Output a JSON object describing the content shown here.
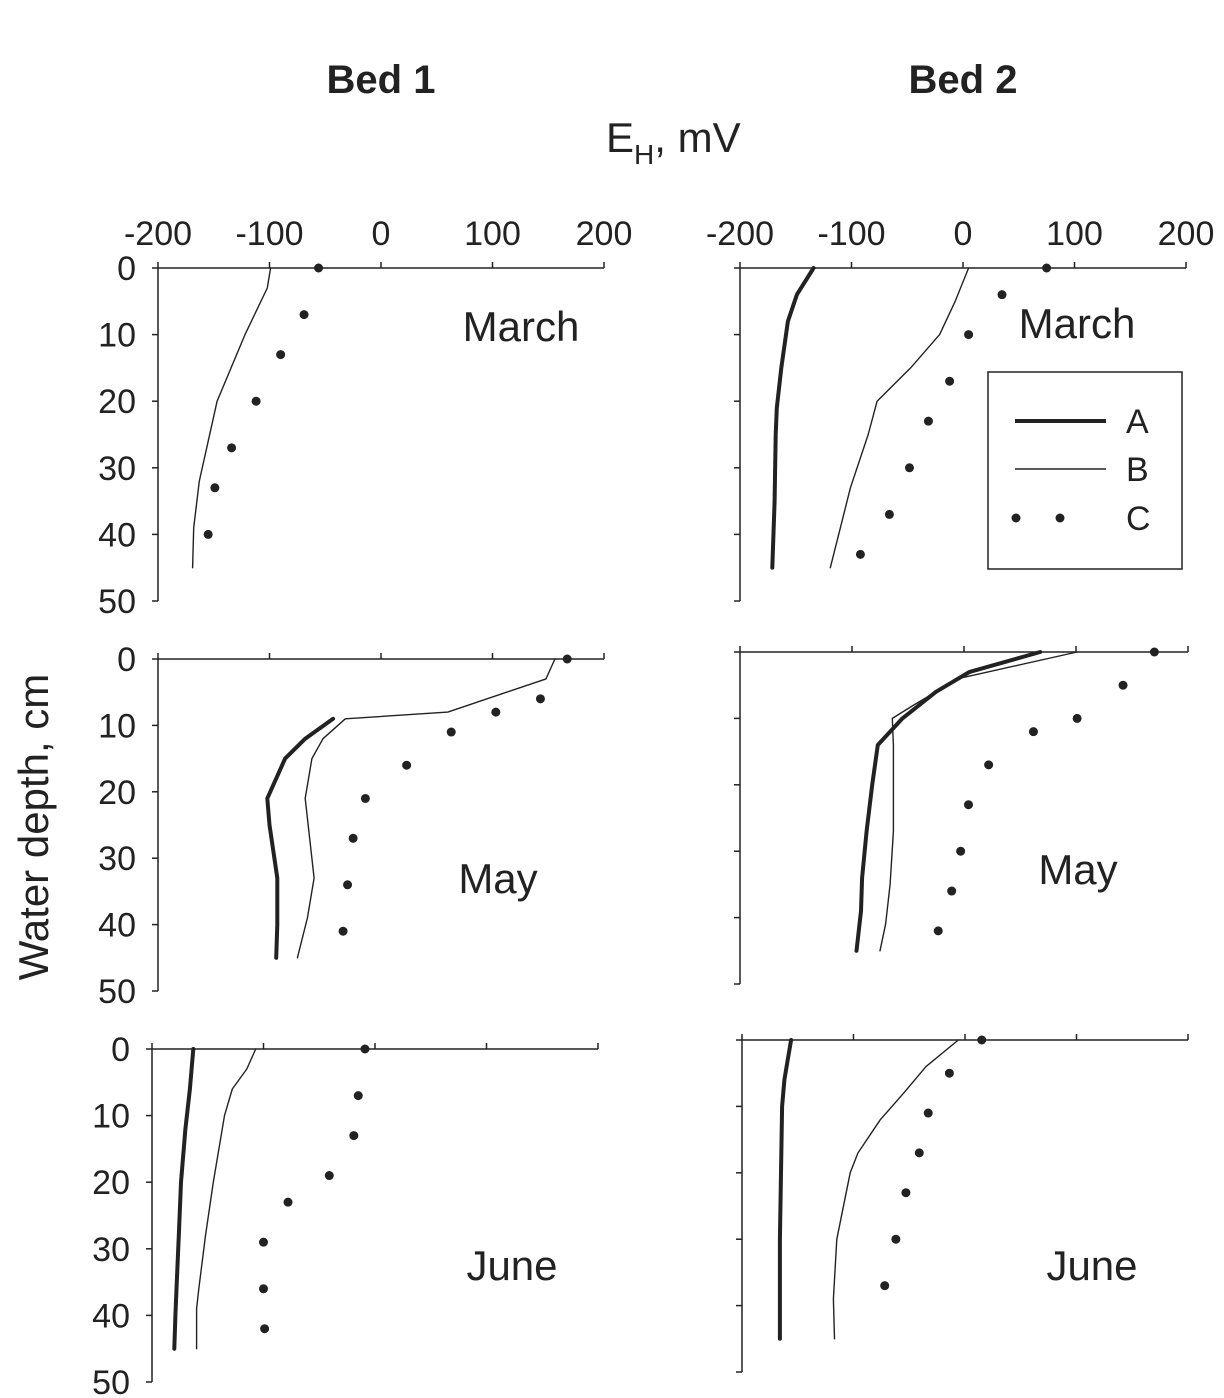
{
  "titles": {
    "bed1": "Bed 1",
    "bed2": "Bed 2"
  },
  "x_axis": {
    "label_main": "E",
    "label_sub": "H",
    "label_rest": ", mV"
  },
  "y_axis": {
    "label": "Water depth, cm"
  },
  "legend": {
    "A": "A",
    "B": "B",
    "C": "C"
  },
  "chart_data": {
    "type": "line",
    "title": "",
    "xlabel": "EH, mV",
    "ylabel": "Water depth, cm",
    "xlim": [
      -200,
      200
    ],
    "ylim": [
      50,
      0
    ],
    "x_ticks": [
      "-200",
      "-100",
      "0",
      "100",
      "200"
    ],
    "y_ticks": [
      "0",
      "10",
      "20",
      "30",
      "40",
      "50"
    ],
    "series_styles": {
      "A": "thick line",
      "B": "thin line",
      "C": "dots"
    },
    "legend_position": "right, Bed 2 March panel",
    "panels": [
      {
        "bed": "Bed 1",
        "month": "March",
        "series": [
          {
            "name": "B",
            "points": [
              [
                -99,
                0
              ],
              [
                -102,
                3
              ],
              [
                -122,
                10
              ],
              [
                -147,
                20
              ],
              [
                -163,
                32
              ],
              [
                -168,
                39
              ],
              [
                -169,
                45
              ]
            ]
          },
          {
            "name": "C",
            "points": [
              [
                -56,
                0
              ],
              [
                -69,
                7
              ],
              [
                -90,
                13
              ],
              [
                -112,
                20
              ],
              [
                -134,
                27
              ],
              [
                -149,
                33
              ],
              [
                -155,
                40
              ]
            ]
          }
        ]
      },
      {
        "bed": "Bed 1",
        "month": "May",
        "series": [
          {
            "name": "A",
            "points": [
              [
                -43,
                9
              ],
              [
                -68,
                12
              ],
              [
                -86,
                15
              ],
              [
                -102,
                21
              ],
              [
                -100,
                25
              ],
              [
                -93,
                33
              ],
              [
                -93,
                40
              ],
              [
                -94,
                45
              ]
            ]
          },
          {
            "name": "B",
            "points": [
              [
                156,
                0
              ],
              [
                148,
                3
              ],
              [
                60,
                8
              ],
              [
                -32,
                9
              ],
              [
                -52,
                12
              ],
              [
                -62,
                15
              ],
              [
                -68,
                21
              ],
              [
                -60,
                33
              ],
              [
                -66,
                39
              ],
              [
                -75,
                45
              ]
            ]
          },
          {
            "name": "C",
            "points": [
              [
                167,
                0
              ],
              [
                143,
                6
              ],
              [
                103,
                8
              ],
              [
                63,
                11
              ],
              [
                23,
                16
              ],
              [
                -14,
                21
              ],
              [
                -25,
                27
              ],
              [
                -30,
                34
              ],
              [
                -34,
                41
              ]
            ]
          }
        ]
      },
      {
        "bed": "Bed 1",
        "month": "June",
        "series": [
          {
            "name": "A",
            "points": [
              [
                -163,
                0
              ],
              [
                -166,
                6
              ],
              [
                -170,
                12
              ],
              [
                -174,
                20
              ],
              [
                -176,
                28
              ],
              [
                -178,
                36
              ],
              [
                -179,
                40
              ],
              [
                -180,
                45
              ]
            ]
          },
          {
            "name": "B",
            "points": [
              [
                -107,
                0
              ],
              [
                -115,
                3
              ],
              [
                -128,
                6
              ],
              [
                -135,
                10
              ],
              [
                -145,
                20
              ],
              [
                -152,
                28
              ],
              [
                -158,
                36
              ],
              [
                -160,
                39
              ],
              [
                -160,
                45
              ]
            ]
          },
          {
            "name": "C",
            "points": [
              [
                -9,
                0
              ],
              [
                -15,
                7
              ],
              [
                -19,
                13
              ],
              [
                -41,
                19
              ],
              [
                -78,
                23
              ],
              [
                -100,
                29
              ],
              [
                -100,
                36
              ],
              [
                -99,
                42
              ]
            ]
          }
        ]
      },
      {
        "bed": "Bed 2",
        "month": "March",
        "series": [
          {
            "name": "A",
            "points": [
              [
                -134,
                0
              ],
              [
                -149,
                4
              ],
              [
                -157,
                8
              ],
              [
                -163,
                15
              ],
              [
                -167,
                21
              ],
              [
                -168,
                25
              ],
              [
                -169,
                35
              ],
              [
                -171,
                45
              ]
            ]
          },
          {
            "name": "B",
            "points": [
              [
                5,
                0
              ],
              [
                -7,
                5
              ],
              [
                -21,
                10
              ],
              [
                -47,
                15
              ],
              [
                -77,
                20
              ],
              [
                -85,
                25
              ],
              [
                -101,
                33
              ],
              [
                -110,
                39
              ],
              [
                -119,
                45
              ]
            ]
          },
          {
            "name": "C",
            "points": [
              [
                75,
                0
              ],
              [
                35,
                4
              ],
              [
                5,
                10
              ],
              [
                -12,
                17
              ],
              [
                -31,
                23
              ],
              [
                -48,
                30
              ],
              [
                -66,
                37
              ],
              [
                -92,
                43
              ]
            ]
          }
        ]
      },
      {
        "bed": "Bed 2",
        "month": "May",
        "series": [
          {
            "name": "A",
            "points": [
              [
                68,
                0
              ],
              [
                5,
                3
              ],
              [
                -25,
                6
              ],
              [
                -55,
                10
              ],
              [
                -77,
                14
              ],
              [
                -82,
                20
              ],
              [
                -87,
                27
              ],
              [
                -91,
                34
              ],
              [
                -92,
                39
              ],
              [
                -96,
                45
              ]
            ]
          },
          {
            "name": "B",
            "points": [
              [
                101,
                0
              ],
              [
                -5,
                4
              ],
              [
                -45,
                8
              ],
              [
                -64,
                10
              ],
              [
                -63,
                14
              ],
              [
                -63,
                27
              ],
              [
                -66,
                35
              ],
              [
                -70,
                41
              ],
              [
                -75,
                45
              ]
            ]
          },
          {
            "name": "C",
            "points": [
              [
                170,
                0
              ],
              [
                142,
                5
              ],
              [
                101,
                10
              ],
              [
                62,
                12
              ],
              [
                22,
                17
              ],
              [
                4,
                23
              ],
              [
                -3,
                30
              ],
              [
                -11,
                36
              ],
              [
                -23,
                42
              ]
            ]
          }
        ]
      },
      {
        "bed": "Bed 2",
        "month": "June",
        "series": [
          {
            "name": "A",
            "points": [
              [
                -156,
                0
              ],
              [
                -159,
                3
              ],
              [
                -162,
                6
              ],
              [
                -164,
                10
              ],
              [
                -165,
                20
              ],
              [
                -166,
                30
              ],
              [
                -166,
                37
              ],
              [
                -166,
                45
              ]
            ]
          },
          {
            "name": "B",
            "points": [
              [
                -6,
                0
              ],
              [
                -35,
                4
              ],
              [
                -55,
                8
              ],
              [
                -76,
                12
              ],
              [
                -96,
                17
              ],
              [
                -103,
                20
              ],
              [
                -115,
                30
              ],
              [
                -118,
                39
              ],
              [
                -117,
                45
              ]
            ]
          },
          {
            "name": "C",
            "points": [
              [
                15,
                0
              ],
              [
                -14,
                5
              ],
              [
                -33,
                11
              ],
              [
                -41,
                17
              ],
              [
                -53,
                23
              ],
              [
                -62,
                30
              ],
              [
                -72,
                37
              ]
            ]
          }
        ]
      }
    ]
  }
}
